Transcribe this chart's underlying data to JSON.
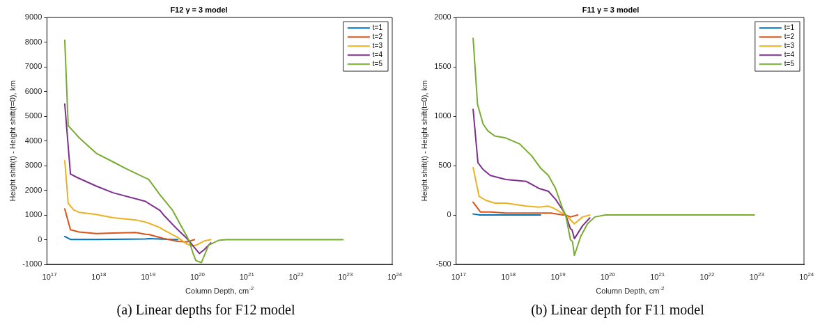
{
  "chart_data": [
    {
      "type": "line",
      "title": "F12 γ = 3 model",
      "xlabel": "Column Depth, cm$^{-2}$",
      "ylabel": "Height shift(t) - Height shift(t=0), km",
      "log": "x",
      "legend": "top right",
      "xlim": [
        1e+17,
        1e+24
      ],
      "xticks": [
        {
          "value": 1e+17,
          "label": "10$^{17}$"
        },
        {
          "value": 1e+18,
          "label": "10$^{18}$"
        },
        {
          "value": 1e+19,
          "label": "10$^{19}$"
        },
        {
          "value": 1e+20,
          "label": "10$^{20}$"
        },
        {
          "value": 1e+21,
          "label": "10$^{21}$"
        },
        {
          "value": 1e+22,
          "label": "10$^{22}$"
        },
        {
          "value": 1e+23,
          "label": "10$^{23}$"
        },
        {
          "value": 1e+24,
          "label": "10$^{24}$"
        }
      ],
      "ylim": [
        -1000,
        9000
      ],
      "yticks": [
        -1000,
        0,
        1000,
        2000,
        3000,
        4000,
        5000,
        6000,
        7000,
        8000,
        9000
      ],
      "series": [
        {
          "name": "t=1",
          "color": "#0072bd",
          "x": [
            2.3e+17,
            3e+17,
            1e+18,
            1e+19,
            1.15e+19,
            2.3e+19,
            4.5e+19
          ],
          "values": [
            130,
            10,
            10,
            30,
            40,
            20,
            0
          ]
        },
        {
          "name": "t=2",
          "color": "#d95319",
          "x": [
            2.3e+17,
            3e+17,
            4.5e+17,
            1e+18,
            2.2e+18,
            6.3e+18,
            1e+19,
            1.15e+19,
            2.3e+19,
            4.5e+19,
            6.9e+19,
            9.8e+19
          ],
          "values": [
            1250,
            400,
            310,
            250,
            270,
            290,
            220,
            210,
            50,
            -70,
            -90,
            0
          ]
        },
        {
          "name": "t=3",
          "color": "#edb120",
          "x": [
            2.3e+17,
            2.7e+17,
            3.5e+17,
            4.5e+17,
            1e+18,
            2.2e+18,
            6.3e+18,
            1e+19,
            1.15e+19,
            1.95e+19,
            2.3e+19,
            4.5e+19,
            6.9e+19,
            8.7e+19,
            1.07e+20,
            1.55e+20,
            2.1e+20
          ],
          "values": [
            3200,
            1480,
            1200,
            1110,
            1020,
            890,
            800,
            710,
            670,
            490,
            400,
            90,
            -180,
            -250,
            -220,
            -50,
            0
          ]
        },
        {
          "name": "t=4",
          "color": "#7e2f8e",
          "x": [
            2.3e+17,
            3e+17,
            4e+17,
            1e+18,
            2.2e+18,
            1e+19,
            1.15e+19,
            1.95e+19,
            2.3e+19,
            4.5e+19,
            6.9e+19,
            9.8e+19,
            1.23e+20,
            1.55e+20,
            2.1e+20
          ],
          "values": [
            5500,
            2660,
            2530,
            2170,
            1900,
            1550,
            1470,
            1190,
            1010,
            400,
            50,
            -320,
            -560,
            -400,
            -130
          ]
        },
        {
          "name": "t=5",
          "color": "#77ac30",
          "x": [
            2.3e+17,
            2.7e+17,
            3.4e+17,
            4.5e+17,
            1e+18,
            2.2e+18,
            4e+18,
            1e+19,
            1.15e+19,
            1.95e+19,
            3.5e+19,
            6.9e+19,
            7.6e+19,
            9.3e+19,
            1.05e+20,
            1.35e+20,
            1.9e+20,
            3e+20,
            4.3e+20,
            1e+23
          ],
          "values": [
            8080,
            4620,
            4400,
            4130,
            3500,
            3150,
            2880,
            2500,
            2450,
            1820,
            1200,
            130,
            -40,
            -590,
            -850,
            -930,
            -220,
            -30,
            0,
            0
          ]
        }
      ],
      "annotations": [
        "(a) Linear depths for F12 model"
      ]
    },
    {
      "type": "line",
      "title": "F11 γ = 3 model",
      "xlabel": "Column Depth, cm$^{-2}$",
      "ylabel": "Height shift(t) - Height shift(t=0), km",
      "log": "x",
      "legend": "top right",
      "xlim": [
        1e+17,
        1e+24
      ],
      "xticks": [
        {
          "value": 1e+17,
          "label": "10$^{17}$"
        },
        {
          "value": 1e+18,
          "label": "10$^{18}$"
        },
        {
          "value": 1e+19,
          "label": "10$^{19}$"
        },
        {
          "value": 1e+20,
          "label": "10$^{20}$"
        },
        {
          "value": 1e+21,
          "label": "10$^{21}$"
        },
        {
          "value": 1e+22,
          "label": "10$^{22}$"
        },
        {
          "value": 1e+23,
          "label": "10$^{23}$"
        },
        {
          "value": 1e+24,
          "label": "10$^{24}$"
        }
      ],
      "ylim": [
        -500,
        2000
      ],
      "yticks": [
        -500,
        0,
        500,
        1000,
        1500,
        2000
      ],
      "series": [
        {
          "name": "t=1",
          "color": "#0072bd",
          "x": [
            2.2e+17,
            3e+17,
            5e+18
          ],
          "values": [
            10,
            0,
            0
          ]
        },
        {
          "name": "t=2",
          "color": "#d95319",
          "x": [
            2.2e+17,
            3.1e+17,
            4.9e+17,
            1e+18,
            3.3e+18,
            8.1e+18,
            1.4e+19,
            1.6e+19,
            2e+19,
            2.8e+19
          ],
          "values": [
            130,
            30,
            30,
            20,
            20,
            20,
            0,
            0,
            -20,
            0
          ]
        },
        {
          "name": "t=3",
          "color": "#edb120",
          "x": [
            2.2e+17,
            2.9e+17,
            3.9e+17,
            6e+17,
            1e+18,
            2.6e+18,
            4.6e+18,
            7.2e+18,
            9.1e+18,
            1.26e+19,
            1.6e+19,
            2.4e+19,
            3.5e+19,
            4.9e+19
          ],
          "values": [
            480,
            190,
            150,
            120,
            120,
            90,
            80,
            90,
            70,
            30,
            0,
            -90,
            -20,
            0
          ]
        },
        {
          "name": "t=4",
          "color": "#7e2f8e",
          "x": [
            2.2e+17,
            2.75e+17,
            3.5e+17,
            4.9e+17,
            1e+18,
            2.6e+18,
            4.6e+18,
            7.2e+18,
            1e+19,
            1.4e+19,
            1.6e+19,
            2e+19,
            2.15e+19,
            2.4e+19,
            3.5e+19,
            4.9e+19
          ],
          "values": [
            1070,
            530,
            460,
            400,
            360,
            340,
            270,
            240,
            160,
            50,
            0,
            -140,
            -150,
            -240,
            -110,
            -30
          ]
        },
        {
          "name": "t=5",
          "color": "#77ac30",
          "x": [
            2.2e+17,
            2.7e+17,
            3.5e+17,
            4.4e+17,
            6e+17,
            1e+18,
            1.9e+18,
            3.3e+18,
            5.1e+18,
            7.2e+18,
            1e+19,
            1.4e+19,
            1.6e+19,
            2e+19,
            2.2e+19,
            2.4e+19,
            3.2e+19,
            4.4e+19,
            6.2e+19,
            1e+20,
            1e+23
          ],
          "values": [
            1790,
            1120,
            920,
            850,
            800,
            780,
            720,
            600,
            470,
            400,
            270,
            60,
            0,
            -250,
            -270,
            -410,
            -220,
            -90,
            -20,
            0,
            0
          ]
        }
      ],
      "annotations": [
        "(b) Linear depth for F11 model"
      ]
    }
  ]
}
